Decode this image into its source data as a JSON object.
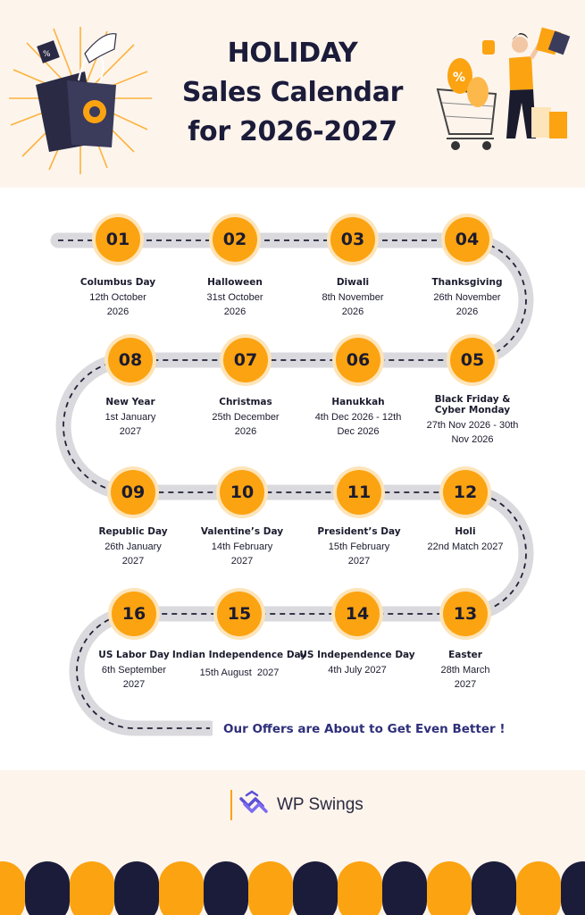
{
  "title": {
    "line1": "HOLIDAY",
    "line2": "Sales Calendar",
    "line3": "for 2026-2027"
  },
  "milestones": [
    {
      "num": "01",
      "name": "Columbus Day",
      "date": "12th October 2026"
    },
    {
      "num": "02",
      "name": "Halloween",
      "date": "31st October 2026"
    },
    {
      "num": "03",
      "name": "Diwali",
      "date": "8th November 2026"
    },
    {
      "num": "04",
      "name": "Thanksgiving",
      "date": "26th November 2026"
    },
    {
      "num": "05",
      "name": "Black Friday & Cyber Monday",
      "date": "27th Nov 2026 - 30th Nov 2026"
    },
    {
      "num": "06",
      "name": "Hanukkah",
      "date": "4th Dec 2026 - 12th Dec 2026"
    },
    {
      "num": "07",
      "name": "Christmas",
      "date": "25th December 2026"
    },
    {
      "num": "08",
      "name": "New Year",
      "date": "1st January 2027"
    },
    {
      "num": "09",
      "name": "Republic Day",
      "date": "26th January 2027"
    },
    {
      "num": "10",
      "name": "Valentine’s Day",
      "date": "14th February 2027"
    },
    {
      "num": "11",
      "name": "President’s Day",
      "date": "15th February 2027"
    },
    {
      "num": "12",
      "name": "Holi",
      "date": "22nd Match 2027"
    },
    {
      "num": "13",
      "name": "Easter",
      "date": "28th March 2027"
    },
    {
      "num": "14",
      "name": "US Independence Day",
      "date": "4th July 2027"
    },
    {
      "num": "15",
      "name": "Indian Independence Day",
      "date": "15th August  2027"
    },
    {
      "num": "16",
      "name": "US Labor Day",
      "date": "6th September 2027"
    }
  ],
  "tagline": "Our Offers are About to Get Even Better !",
  "brand": {
    "name": "WP Swings",
    "logo_icon": "wp-swings-logo-icon"
  },
  "colors": {
    "accent": "#fca311",
    "accent_glow": "#fde4b9",
    "navy": "#1b1b3a",
    "road": "#d9d9de",
    "cream": "#fdf4ec",
    "tagline": "#2e2f7a",
    "logo": "#5b4fd6"
  }
}
